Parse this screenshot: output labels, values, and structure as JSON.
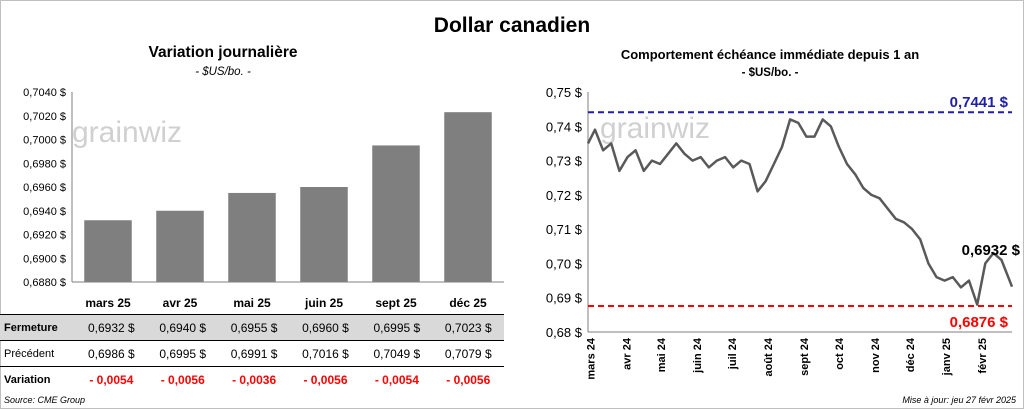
{
  "main_title": "Dollar canadien",
  "left": {
    "title": "Variation  journalière",
    "subtitle": "- $US/bo. -",
    "watermark": "grainwiz"
  },
  "right": {
    "title": "Comportement échéance immédiate depuis 1 an",
    "subtitle": "- $US/bo. -",
    "watermark": "grainwiz",
    "ref_high_label": "0,7441 $",
    "ref_low_label": "0,6876 $",
    "last_label": "0,6932 $"
  },
  "table": {
    "rows": [
      {
        "label": "Fermeture",
        "values": [
          "0,6932  $",
          "0,6940  $",
          "0,6955  $",
          "0,6960  $",
          "0,6995  $",
          "0,7023  $"
        ]
      },
      {
        "label": "Précédent",
        "values": [
          "0,6986  $",
          "0,6995  $",
          "0,6991  $",
          "0,7016  $",
          "0,7049  $",
          "0,7079  $"
        ]
      },
      {
        "label": "Variation",
        "values": [
          "- 0,0054",
          "- 0,0056",
          "- 0,0036",
          "- 0,0056",
          "- 0,0054",
          "- 0,0056"
        ]
      }
    ]
  },
  "footer": {
    "source": "Source: CME Group",
    "updated": "Mise à jour: jeu 27 févr 2025"
  },
  "colors": {
    "bar": "#7f7f7f",
    "line": "#595959",
    "ref_high": "#1f1fa8",
    "ref_low": "#ff0000",
    "shade": "#d9d9d9"
  },
  "chart_data": [
    {
      "type": "bar",
      "categories": [
        "mars 25",
        "avr 25",
        "mai 25",
        "juin 25",
        "sept 25",
        "déc 25"
      ],
      "values": [
        0.6932,
        0.694,
        0.6955,
        0.696,
        0.6995,
        0.7023
      ],
      "ylim": [
        0.688,
        0.704
      ],
      "yticks": [
        "0,6880 $",
        "0,6900 $",
        "0,6920 $",
        "0,6940 $",
        "0,6960 $",
        "0,6980 $",
        "0,7000 $",
        "0,7020 $",
        "0,7040 $"
      ],
      "grid": false
    },
    {
      "type": "line",
      "ylim": [
        0.68,
        0.75
      ],
      "yticks": [
        "0,68 $",
        "0,69 $",
        "0,70 $",
        "0,71 $",
        "0,72 $",
        "0,73 $",
        "0,74 $",
        "0,75 $"
      ],
      "xticks": [
        "mars 24",
        "avr 24",
        "mai 24",
        "juin 24",
        "juil 24",
        "août 24",
        "sept 24",
        "oct 24",
        "nov 24",
        "déc 24",
        "janv 25",
        "févr 25"
      ],
      "x": [
        "2024-02-28",
        "2024-03-05",
        "2024-03-12",
        "2024-03-19",
        "2024-03-26",
        "2024-04-02",
        "2024-04-09",
        "2024-04-16",
        "2024-04-23",
        "2024-04-30",
        "2024-05-07",
        "2024-05-14",
        "2024-05-21",
        "2024-05-28",
        "2024-06-04",
        "2024-06-11",
        "2024-06-18",
        "2024-06-25",
        "2024-07-02",
        "2024-07-09",
        "2024-07-16",
        "2024-07-23",
        "2024-07-30",
        "2024-08-06",
        "2024-08-13",
        "2024-08-20",
        "2024-08-27",
        "2024-09-03",
        "2024-09-10",
        "2024-09-17",
        "2024-09-24",
        "2024-10-01",
        "2024-10-08",
        "2024-10-15",
        "2024-10-22",
        "2024-10-29",
        "2024-11-05",
        "2024-11-12",
        "2024-11-19",
        "2024-11-26",
        "2024-12-03",
        "2024-12-10",
        "2024-12-17",
        "2024-12-24",
        "2024-12-31",
        "2025-01-07",
        "2025-01-14",
        "2025-01-21",
        "2025-01-28",
        "2025-02-04",
        "2025-02-11",
        "2025-02-18",
        "2025-02-27"
      ],
      "series": [
        {
          "values": [
            0.735,
            0.739,
            0.733,
            0.735,
            0.727,
            0.731,
            0.733,
            0.727,
            0.73,
            0.729,
            0.732,
            0.735,
            0.732,
            0.73,
            0.731,
            0.728,
            0.73,
            0.731,
            0.728,
            0.73,
            0.729,
            0.721,
            0.724,
            0.729,
            0.734,
            0.742,
            0.741,
            0.737,
            0.737,
            0.742,
            0.74,
            0.734,
            0.729,
            0.726,
            0.722,
            0.72,
            0.719,
            0.716,
            0.713,
            0.712,
            0.71,
            0.707,
            0.7,
            0.696,
            0.695,
            0.696,
            0.693,
            0.695,
            0.688,
            0.7,
            0.703,
            0.701,
            0.6932
          ]
        }
      ],
      "ref_lines": [
        0.7441,
        0.6876
      ]
    }
  ]
}
